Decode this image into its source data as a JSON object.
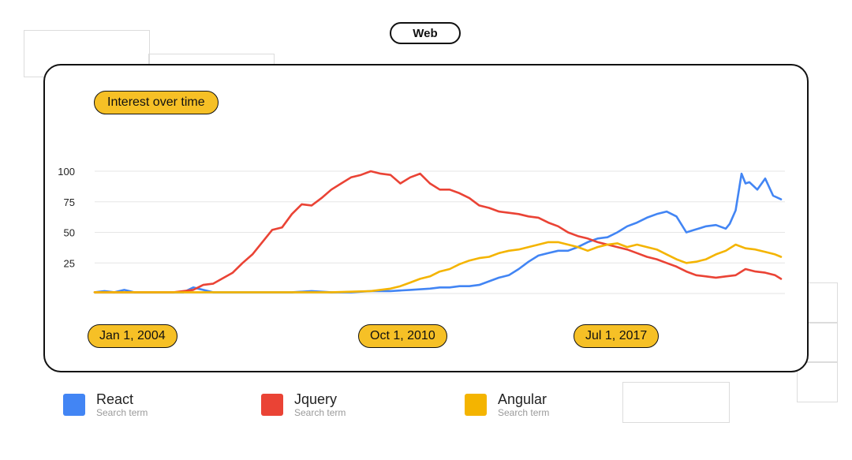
{
  "header": {
    "pill_label": "Web"
  },
  "card": {
    "title": "Interest over time"
  },
  "date_markers": [
    "Jan 1, 2004",
    "Oct 1, 2010",
    "Jul 1, 2017"
  ],
  "legend": [
    {
      "name": "React",
      "sub": "Search term",
      "color": "#4285F4"
    },
    {
      "name": "Jquery",
      "sub": "Search term",
      "color": "#EA4335"
    },
    {
      "name": "Angular",
      "sub": "Search term",
      "color": "#F4B400"
    }
  ],
  "chart_data": {
    "type": "line",
    "title": "Interest over time",
    "xlabel": "",
    "ylabel": "",
    "yticks": [
      25,
      50,
      75,
      100
    ],
    "ylim": [
      0,
      100
    ],
    "xlim": [
      2004.0,
      2021.5
    ],
    "grid": true,
    "series": [
      {
        "name": "React",
        "color": "#4285F4",
        "x": [
          2004.0,
          2004.25,
          2004.5,
          2004.75,
          2005.0,
          2005.5,
          2006.0,
          2006.25,
          2006.5,
          2007.0,
          2007.5,
          2008.0,
          2008.5,
          2009.0,
          2009.5,
          2010.0,
          2010.5,
          2011.0,
          2011.5,
          2012.0,
          2012.5,
          2012.75,
          2013.0,
          2013.25,
          2013.5,
          2013.75,
          2014.0,
          2014.25,
          2014.5,
          2014.75,
          2015.0,
          2015.25,
          2015.5,
          2015.75,
          2016.0,
          2016.25,
          2016.5,
          2016.75,
          2017.0,
          2017.25,
          2017.5,
          2017.75,
          2018.0,
          2018.25,
          2018.5,
          2018.75,
          2019.0,
          2019.2,
          2019.5,
          2019.75,
          2020.0,
          2020.1,
          2020.25,
          2020.4,
          2020.5,
          2020.6,
          2020.8,
          2021.0,
          2021.2,
          2021.4
        ],
        "values": [
          1,
          2,
          1,
          3,
          1,
          1,
          1,
          1,
          5,
          1,
          1,
          1,
          1,
          1,
          2,
          1,
          1,
          2,
          2,
          3,
          4,
          5,
          5,
          6,
          6,
          7,
          10,
          13,
          15,
          20,
          26,
          31,
          33,
          35,
          35,
          38,
          42,
          45,
          46,
          50,
          55,
          58,
          62,
          65,
          67,
          63,
          50,
          52,
          55,
          56,
          53,
          57,
          68,
          98,
          90,
          91,
          85,
          94,
          80,
          77
        ]
      },
      {
        "name": "Jquery",
        "color": "#EA4335",
        "x": [
          2004.0,
          2005.0,
          2006.0,
          2006.5,
          2006.75,
          2007.0,
          2007.5,
          2007.75,
          2008.0,
          2008.25,
          2008.5,
          2008.75,
          2009.0,
          2009.25,
          2009.5,
          2009.75,
          2010.0,
          2010.25,
          2010.5,
          2010.75,
          2011.0,
          2011.25,
          2011.5,
          2011.75,
          2012.0,
          2012.25,
          2012.5,
          2012.75,
          2013.0,
          2013.25,
          2013.5,
          2013.75,
          2014.0,
          2014.25,
          2014.5,
          2014.75,
          2015.0,
          2015.25,
          2015.5,
          2015.75,
          2016.0,
          2016.25,
          2016.5,
          2016.75,
          2017.0,
          2017.25,
          2017.5,
          2017.75,
          2018.0,
          2018.25,
          2018.5,
          2018.75,
          2019.0,
          2019.25,
          2019.5,
          2019.75,
          2020.0,
          2020.25,
          2020.5,
          2020.75,
          2021.0,
          2021.25,
          2021.4
        ],
        "values": [
          1,
          1,
          1,
          3,
          7,
          8,
          17,
          25,
          32,
          42,
          52,
          54,
          65,
          73,
          72,
          78,
          85,
          90,
          95,
          97,
          100,
          98,
          97,
          90,
          95,
          98,
          90,
          85,
          85,
          82,
          78,
          72,
          70,
          67,
          66,
          65,
          63,
          62,
          58,
          55,
          50,
          47,
          45,
          42,
          40,
          38,
          36,
          33,
          30,
          28,
          25,
          22,
          18,
          15,
          14,
          13,
          14,
          15,
          20,
          18,
          17,
          15,
          12
        ]
      },
      {
        "name": "Angular",
        "color": "#F4B400",
        "x": [
          2004.0,
          2005.0,
          2006.0,
          2007.0,
          2008.0,
          2009.0,
          2010.0,
          2011.0,
          2011.5,
          2011.75,
          2012.0,
          2012.25,
          2012.5,
          2012.75,
          2013.0,
          2013.25,
          2013.5,
          2013.75,
          2014.0,
          2014.25,
          2014.5,
          2014.75,
          2015.0,
          2015.25,
          2015.5,
          2015.75,
          2016.0,
          2016.25,
          2016.5,
          2016.75,
          2017.0,
          2017.25,
          2017.5,
          2017.75,
          2018.0,
          2018.25,
          2018.5,
          2018.75,
          2019.0,
          2019.25,
          2019.5,
          2019.75,
          2020.0,
          2020.25,
          2020.5,
          2020.75,
          2021.0,
          2021.25,
          2021.4
        ],
        "values": [
          1,
          1,
          1,
          1,
          1,
          1,
          1,
          2,
          4,
          6,
          9,
          12,
          14,
          18,
          20,
          24,
          27,
          29,
          30,
          33,
          35,
          36,
          38,
          40,
          42,
          42,
          40,
          38,
          35,
          38,
          40,
          41,
          38,
          40,
          38,
          36,
          32,
          28,
          25,
          26,
          28,
          32,
          35,
          40,
          37,
          36,
          34,
          32,
          30
        ]
      }
    ]
  }
}
